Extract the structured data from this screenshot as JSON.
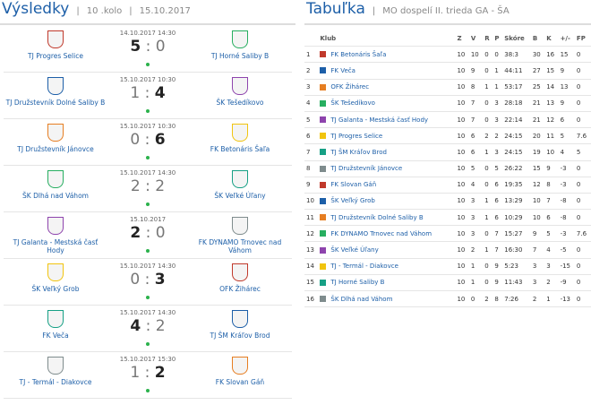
{
  "results": {
    "title": "Výsledky",
    "round": "10 .kolo",
    "date": "15.10.2017",
    "matches": [
      {
        "home": "TJ Progres Selice",
        "away": "TJ Horné Saliby B",
        "datetime": "14.10.2017 14:30",
        "home_score": 5,
        "away_score": 0
      },
      {
        "home": "TJ Družstevník Dolné Saliby B",
        "away": "ŠK Tešedíkovo",
        "datetime": "15.10.2017 10:30",
        "home_score": 1,
        "away_score": 4
      },
      {
        "home": "TJ Družstevník Jánovce",
        "away": "FK Betonáris Šaľa",
        "datetime": "15.10.2017 10:30",
        "home_score": 0,
        "away_score": 6
      },
      {
        "home": "ŠK Dlhá nad Váhom",
        "away": "ŠK Veľké Úľany",
        "datetime": "15.10.2017 14:30",
        "home_score": 2,
        "away_score": 2
      },
      {
        "home": "TJ Galanta - Mestská časť Hody",
        "away": "FK DYNAMO Trnovec nad Váhom",
        "datetime": "15.10.2017",
        "home_score": 2,
        "away_score": 0
      },
      {
        "home": "ŠK Veľký Grob",
        "away": "OFK Žihárec",
        "datetime": "15.10.2017 14:30",
        "home_score": 0,
        "away_score": 3
      },
      {
        "home": "FK Veča",
        "away": "TJ ŠM Kráľov Brod",
        "datetime": "15.10.2017 14:30",
        "home_score": 4,
        "away_score": 2
      },
      {
        "home": "TJ - Termál - Diakovce",
        "away": "FK Slovan Gáň",
        "datetime": "15.10.2017 15:30",
        "home_score": 1,
        "away_score": 2
      }
    ]
  },
  "standings": {
    "title": "Tabuľka",
    "league": "MO dospelí II. trieda GA - ŠA",
    "columns": [
      "Klub",
      "Z",
      "V",
      "R",
      "P",
      "Skóre",
      "B",
      "K",
      "+/-",
      "FP"
    ],
    "rows": [
      [
        1,
        "FK Betonáris Šaľa",
        10,
        10,
        0,
        0,
        "38:3",
        30,
        16,
        15,
        0
      ],
      [
        2,
        "FK Veča",
        10,
        9,
        0,
        1,
        "44:11",
        27,
        15,
        9,
        0
      ],
      [
        3,
        "OFK Žihárec",
        10,
        8,
        1,
        1,
        "53:17",
        25,
        14,
        13,
        0
      ],
      [
        4,
        "ŠK Tešedíkovo",
        10,
        7,
        0,
        3,
        "28:18",
        21,
        13,
        9,
        0
      ],
      [
        5,
        "TJ Galanta - Mestská časť Hody",
        10,
        7,
        0,
        3,
        "22:14",
        21,
        12,
        6,
        0
      ],
      [
        6,
        "TJ Progres Selice",
        10,
        6,
        2,
        2,
        "24:15",
        20,
        11,
        5,
        7.6
      ],
      [
        7,
        "TJ ŠM Kráľov Brod",
        10,
        6,
        1,
        3,
        "24:15",
        19,
        10,
        4,
        5
      ],
      [
        8,
        "TJ Družstevník Jánovce",
        10,
        5,
        0,
        5,
        "26:22",
        15,
        9,
        -3,
        0
      ],
      [
        9,
        "FK Slovan Gáň",
        10,
        4,
        0,
        6,
        "19:35",
        12,
        8,
        -3,
        0
      ],
      [
        10,
        "ŠK Veľký Grob",
        10,
        3,
        1,
        6,
        "13:29",
        10,
        7,
        -8,
        0
      ],
      [
        11,
        "TJ Družstevník Dolné Saliby B",
        10,
        3,
        1,
        6,
        "10:29",
        10,
        6,
        -8,
        0
      ],
      [
        12,
        "FK DYNAMO Trnovec nad Váhom",
        10,
        3,
        0,
        7,
        "15:27",
        9,
        5,
        -3,
        7.6
      ],
      [
        13,
        "ŠK Veľké Úľany",
        10,
        2,
        1,
        7,
        "16:30",
        7,
        4,
        -5,
        0
      ],
      [
        14,
        "TJ - Termál - Diakovce",
        10,
        1,
        0,
        9,
        "5:23",
        3,
        3,
        -15,
        0
      ],
      [
        15,
        "TJ Horné Saliby B",
        10,
        1,
        0,
        9,
        "11:43",
        3,
        2,
        -9,
        0
      ],
      [
        16,
        "ŠK Dlhá nad Váhom",
        10,
        0,
        2,
        8,
        "7:26",
        2,
        1,
        -13,
        0
      ]
    ]
  }
}
